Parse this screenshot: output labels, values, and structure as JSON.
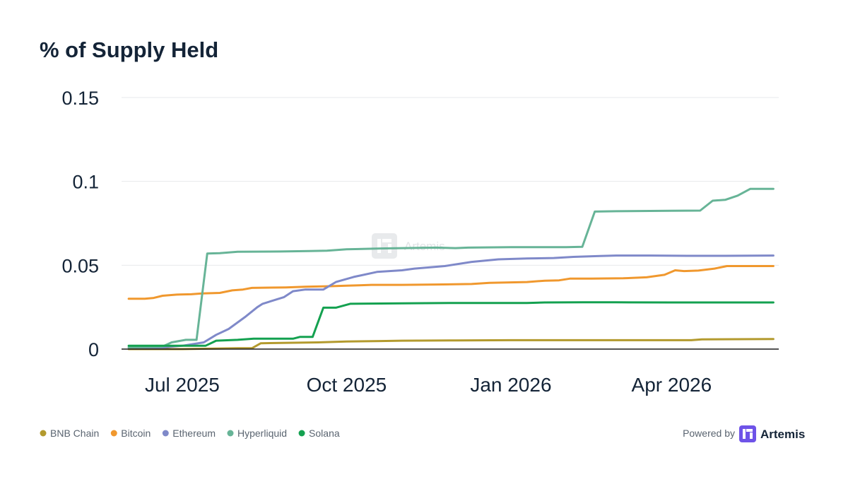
{
  "chart_data": {
    "type": "line",
    "title": "% of Supply Held",
    "xlabel": "",
    "ylabel": "",
    "x_start": "2025-05-28",
    "x_end": "2026-05-31",
    "x_ticks": [
      {
        "date": "2025-07-01",
        "label": "Jul 2025"
      },
      {
        "date": "2025-10-01",
        "label": "Oct 2025"
      },
      {
        "date": "2026-01-01",
        "label": "Jan 2026"
      },
      {
        "date": "2026-04-01",
        "label": "Apr 2026"
      }
    ],
    "ylim": [
      0,
      0.15
    ],
    "y_ticks": [
      {
        "value": 0,
        "label": "0"
      },
      {
        "value": 0.05,
        "label": "0.05"
      },
      {
        "value": 0.1,
        "label": "0.1"
      },
      {
        "value": 0.15,
        "label": "0.15"
      }
    ],
    "grid": true,
    "legend_position": "bottom-left",
    "series": [
      {
        "name": "BNB Chain",
        "color": "#b39a2e",
        "points": [
          [
            "2025-06-01",
            0.0
          ],
          [
            "2025-07-01",
            0.0
          ],
          [
            "2025-08-01",
            0.0005
          ],
          [
            "2025-08-09",
            0.0005
          ],
          [
            "2025-08-14",
            0.0035
          ],
          [
            "2025-09-15",
            0.004
          ],
          [
            "2025-10-01",
            0.0045
          ],
          [
            "2025-10-20",
            0.0048
          ],
          [
            "2025-11-01",
            0.005
          ],
          [
            "2025-12-01",
            0.0052
          ],
          [
            "2026-01-01",
            0.0053
          ],
          [
            "2026-02-01",
            0.0053
          ],
          [
            "2026-03-01",
            0.0053
          ],
          [
            "2026-04-01",
            0.0053
          ],
          [
            "2026-04-12",
            0.0053
          ],
          [
            "2026-04-18",
            0.0058
          ],
          [
            "2026-05-28",
            0.006
          ]
        ]
      },
      {
        "name": "Bitcoin",
        "color": "#f0982e",
        "points": [
          [
            "2025-06-01",
            0.03
          ],
          [
            "2025-06-10",
            0.03
          ],
          [
            "2025-06-15",
            0.0305
          ],
          [
            "2025-06-20",
            0.0318
          ],
          [
            "2025-06-28",
            0.0325
          ],
          [
            "2025-07-06",
            0.0327
          ],
          [
            "2025-07-12",
            0.0332
          ],
          [
            "2025-07-22",
            0.0335
          ],
          [
            "2025-07-29",
            0.035
          ],
          [
            "2025-08-04",
            0.0355
          ],
          [
            "2025-08-09",
            0.0365
          ],
          [
            "2025-08-28",
            0.0368
          ],
          [
            "2025-09-08",
            0.0372
          ],
          [
            "2025-09-22",
            0.0375
          ],
          [
            "2025-10-01",
            0.0378
          ],
          [
            "2025-10-08",
            0.038
          ],
          [
            "2025-10-15",
            0.0383
          ],
          [
            "2025-11-01",
            0.0383
          ],
          [
            "2025-11-20",
            0.0385
          ],
          [
            "2025-12-10",
            0.0388
          ],
          [
            "2025-12-20",
            0.0395
          ],
          [
            "2026-01-10",
            0.04
          ],
          [
            "2026-01-20",
            0.0408
          ],
          [
            "2026-01-28",
            0.041
          ],
          [
            "2026-02-03",
            0.042
          ],
          [
            "2026-02-15",
            0.042
          ],
          [
            "2026-03-05",
            0.0422
          ],
          [
            "2026-03-18",
            0.0428
          ],
          [
            "2026-03-28",
            0.0443
          ],
          [
            "2026-04-03",
            0.047
          ],
          [
            "2026-04-08",
            0.0465
          ],
          [
            "2026-04-16",
            0.0468
          ],
          [
            "2026-04-25",
            0.048
          ],
          [
            "2026-05-02",
            0.0495
          ],
          [
            "2026-05-28",
            0.0495
          ]
        ]
      },
      {
        "name": "Ethereum",
        "color": "#7f89c9",
        "points": [
          [
            "2025-06-01",
            0.001
          ],
          [
            "2025-06-20",
            0.001
          ],
          [
            "2025-07-01",
            0.002
          ],
          [
            "2025-07-13",
            0.004
          ],
          [
            "2025-07-20",
            0.0085
          ],
          [
            "2025-07-27",
            0.012
          ],
          [
            "2025-08-05",
            0.019
          ],
          [
            "2025-08-12",
            0.025
          ],
          [
            "2025-08-15",
            0.027
          ],
          [
            "2025-08-27",
            0.031
          ],
          [
            "2025-09-01",
            0.0345
          ],
          [
            "2025-09-08",
            0.0355
          ],
          [
            "2025-09-18",
            0.0355
          ],
          [
            "2025-09-25",
            0.04
          ],
          [
            "2025-10-05",
            0.043
          ],
          [
            "2025-10-18",
            0.046
          ],
          [
            "2025-11-01",
            0.047
          ],
          [
            "2025-11-08",
            0.048
          ],
          [
            "2025-11-25",
            0.0495
          ],
          [
            "2025-12-10",
            0.052
          ],
          [
            "2025-12-25",
            0.0535
          ],
          [
            "2026-01-10",
            0.054
          ],
          [
            "2026-01-25",
            0.0543
          ],
          [
            "2026-02-05",
            0.055
          ],
          [
            "2026-02-20",
            0.0555
          ],
          [
            "2026-03-01",
            0.0558
          ],
          [
            "2026-03-20",
            0.0558
          ],
          [
            "2026-04-10",
            0.0556
          ],
          [
            "2026-05-01",
            0.0556
          ],
          [
            "2026-05-28",
            0.0558
          ]
        ]
      },
      {
        "name": "Hyperliquid",
        "color": "#67b497",
        "points": [
          [
            "2025-06-01",
            0.001
          ],
          [
            "2025-06-20",
            0.0015
          ],
          [
            "2025-06-25",
            0.004
          ],
          [
            "2025-07-03",
            0.0055
          ],
          [
            "2025-07-09",
            0.0055
          ],
          [
            "2025-07-15",
            0.057
          ],
          [
            "2025-07-22",
            0.0572
          ],
          [
            "2025-08-01",
            0.058
          ],
          [
            "2025-08-25",
            0.0582
          ],
          [
            "2025-09-10",
            0.0585
          ],
          [
            "2025-09-20",
            0.0587
          ],
          [
            "2025-10-01",
            0.0595
          ],
          [
            "2025-10-20",
            0.06
          ],
          [
            "2025-11-20",
            0.0605
          ],
          [
            "2025-12-01",
            0.0602
          ],
          [
            "2025-12-08",
            0.0605
          ],
          [
            "2026-01-01",
            0.0608
          ],
          [
            "2026-02-01",
            0.0608
          ],
          [
            "2026-02-10",
            0.061
          ],
          [
            "2026-02-17",
            0.082
          ],
          [
            "2026-03-01",
            0.0822
          ],
          [
            "2026-04-01",
            0.0825
          ],
          [
            "2026-04-17",
            0.0826
          ],
          [
            "2026-04-24",
            0.0885
          ],
          [
            "2026-05-01",
            0.089
          ],
          [
            "2026-05-08",
            0.0915
          ],
          [
            "2026-05-15",
            0.0955
          ],
          [
            "2026-05-28",
            0.0955
          ]
        ]
      },
      {
        "name": "Solana",
        "color": "#14a150",
        "points": [
          [
            "2025-06-01",
            0.002
          ],
          [
            "2025-06-20",
            0.002
          ],
          [
            "2025-07-14",
            0.002
          ],
          [
            "2025-07-20",
            0.005
          ],
          [
            "2025-08-01",
            0.0055
          ],
          [
            "2025-08-10",
            0.0062
          ],
          [
            "2025-09-01",
            0.0062
          ],
          [
            "2025-09-05",
            0.0073
          ],
          [
            "2025-09-12",
            0.0073
          ],
          [
            "2025-09-18",
            0.0247
          ],
          [
            "2025-09-25",
            0.0247
          ],
          [
            "2025-10-03",
            0.027
          ],
          [
            "2025-11-01",
            0.0273
          ],
          [
            "2025-12-01",
            0.0275
          ],
          [
            "2026-01-10",
            0.0275
          ],
          [
            "2026-01-20",
            0.0278
          ],
          [
            "2026-02-10",
            0.0279
          ],
          [
            "2026-03-01",
            0.0279
          ],
          [
            "2026-04-01",
            0.0278
          ],
          [
            "2026-05-01",
            0.0278
          ],
          [
            "2026-05-28",
            0.0278
          ]
        ]
      }
    ]
  },
  "watermark": {
    "text": "Artemis",
    "icon": "artemis-logo-icon"
  },
  "footer": {
    "powered_by": "Powered by",
    "brand": "Artemis",
    "brand_icon": "artemis-logo-icon",
    "brand_color": "#6e53e8"
  }
}
